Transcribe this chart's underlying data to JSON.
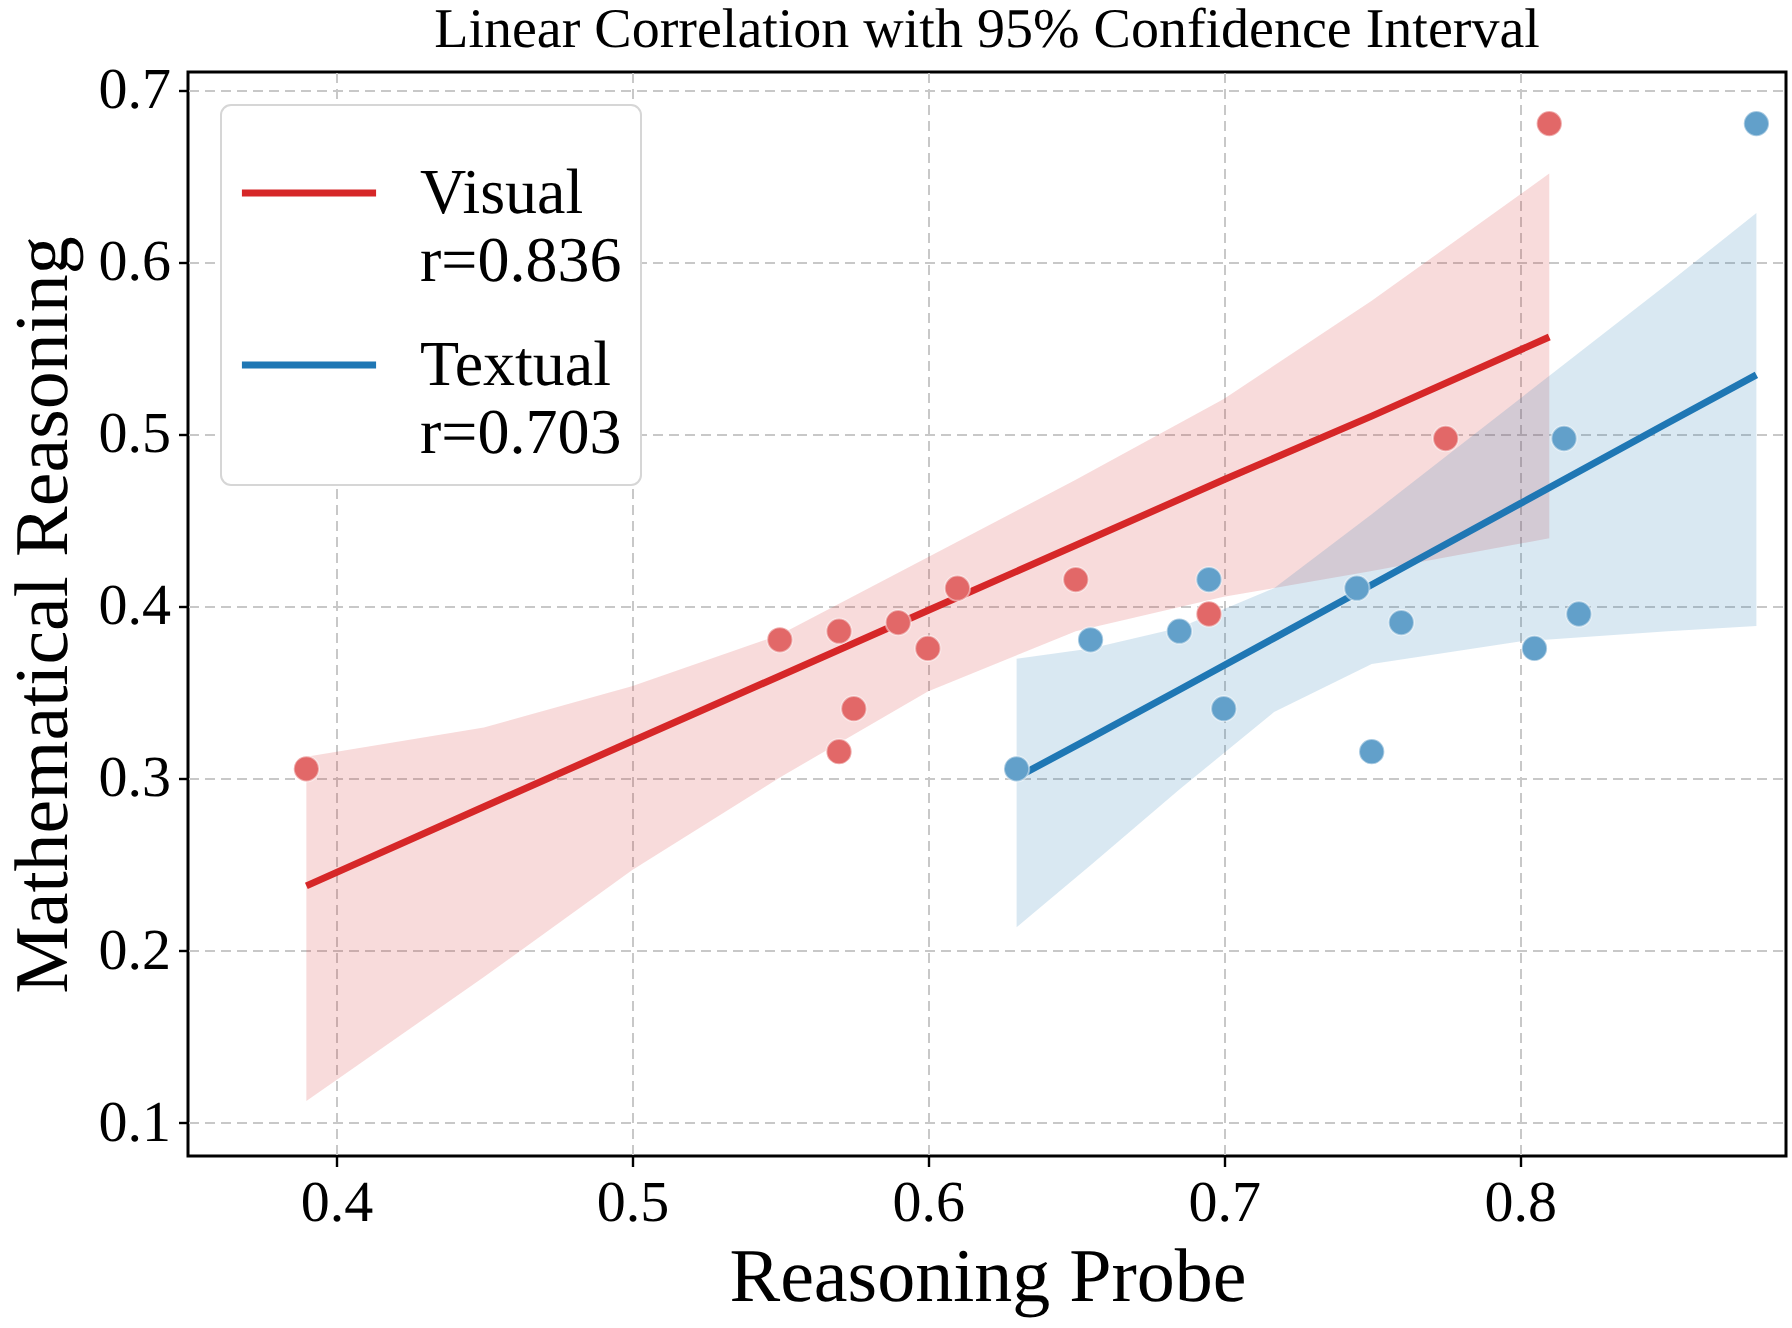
{
  "chart_data": {
    "type": "scatter",
    "title": "Linear Correlation with 95% Confidence Interval",
    "xlabel": "Reasoning Probe",
    "ylabel": "Mathematical Reasoning",
    "xlim": [
      0.35,
      0.89
    ],
    "ylim": [
      0.08,
      0.71
    ],
    "xticks": [
      0.4,
      0.5,
      0.6,
      0.7,
      0.8
    ],
    "yticks": [
      0.1,
      0.2,
      0.3,
      0.4,
      0.5,
      0.6,
      0.7
    ],
    "grid": true,
    "legend": "top left",
    "series": [
      {
        "marker": "circle",
        "color": "#e26868",
        "x": [
          0.39,
          0.55,
          0.57,
          0.57,
          0.575,
          0.59,
          0.6,
          0.61,
          0.65,
          0.695,
          0.775,
          0.81
        ],
        "values": [
          0.305,
          0.38,
          0.385,
          0.315,
          0.34,
          0.39,
          0.375,
          0.41,
          0.415,
          0.395,
          0.497,
          0.68
        ]
      },
      {
        "marker": "circle",
        "color": "#62a0ca",
        "x": [
          0.63,
          0.655,
          0.685,
          0.695,
          0.7,
          0.745,
          0.75,
          0.76,
          0.805,
          0.815,
          0.82,
          0.88
        ],
        "values": [
          0.305,
          0.38,
          0.385,
          0.415,
          0.34,
          0.41,
          0.315,
          0.39,
          0.375,
          0.497,
          0.395,
          0.68
        ]
      },
      {
        "type": "line",
        "name": "Visual\nr=0.836",
        "color": "#d62728",
        "x": [
          0.39,
          0.45,
          0.5,
          0.55,
          0.6,
          0.65,
          0.7,
          0.75,
          0.81
        ],
        "values": [
          0.237,
          0.283,
          0.321,
          0.359,
          0.397,
          0.435,
          0.473,
          0.51,
          0.556
        ],
        "lower": [
          0.112,
          0.184,
          0.246,
          0.3,
          0.35,
          0.385,
          0.405,
          0.42,
          0.439
        ],
        "upper": [
          0.312,
          0.329,
          0.353,
          0.383,
          0.428,
          0.473,
          0.52,
          0.577,
          0.651
        ]
      },
      {
        "type": "line",
        "name": "Textual\nr=0.703",
        "color": "#1f77b4",
        "x": [
          0.63,
          0.655,
          0.685,
          0.717,
          0.75,
          0.8,
          0.85,
          0.88
        ],
        "values": [
          0.3,
          0.323,
          0.351,
          0.381,
          0.412,
          0.459,
          0.506,
          0.534
        ],
        "lower": [
          0.213,
          0.249,
          0.293,
          0.338,
          0.366,
          0.379,
          0.385,
          0.388
        ],
        "upper": [
          0.369,
          0.375,
          0.387,
          0.41,
          0.453,
          0.52,
          0.587,
          0.628
        ]
      }
    ]
  }
}
